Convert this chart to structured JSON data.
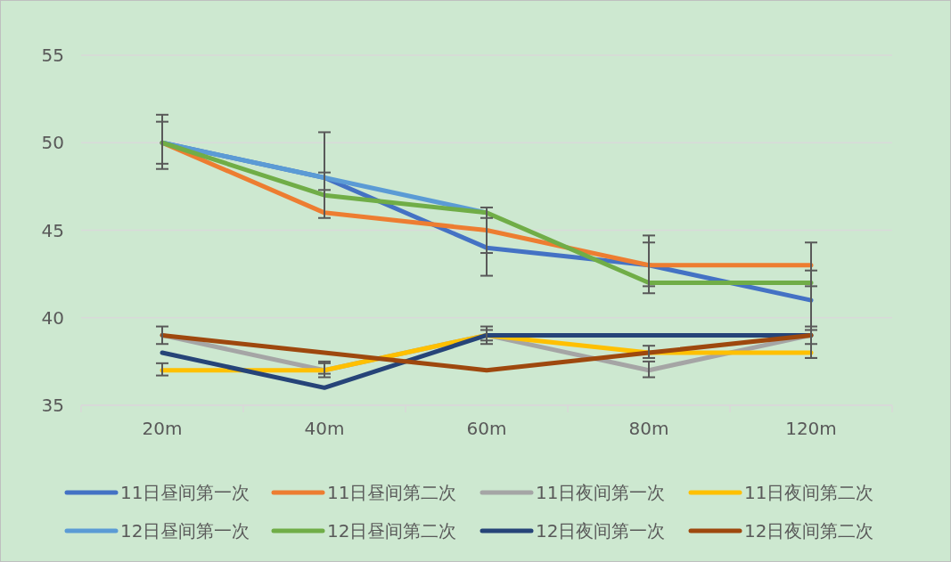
{
  "chart_data": {
    "type": "line",
    "categories": [
      "20m",
      "40m",
      "60m",
      "80m",
      "120m"
    ],
    "ylim": [
      35,
      55
    ],
    "yticks": [
      35,
      40,
      45,
      50,
      55
    ],
    "grid": "y",
    "legend": "bottom",
    "marker": "none",
    "line_style": "solid",
    "series": [
      {
        "name": "11日昼间第一次",
        "color": "#4472c4",
        "values": [
          50,
          48,
          44,
          43,
          41
        ],
        "errors": [
          [
            48.5,
            51.6
          ],
          [
            47.3,
            50.6
          ],
          [
            42.4,
            45.7
          ],
          [
            41.4,
            44.3
          ],
          [
            37.7,
            42.7
          ]
        ]
      },
      {
        "name": "11日昼间第二次",
        "color": "#ed7d31",
        "values": [
          50,
          46,
          45,
          43,
          43
        ],
        "errors": [
          [
            48.8,
            51.2
          ],
          [
            45.7,
            48.3
          ],
          [
            43.7,
            46.3
          ],
          [
            41.8,
            44.7
          ],
          [
            41.8,
            44.3
          ]
        ]
      },
      {
        "name": "11日夜间第一次",
        "color": "#a5a5a5",
        "values": [
          39,
          37,
          39,
          37,
          39
        ],
        "errors": [
          [
            38.5,
            39.5
          ],
          [
            36.6,
            37.5
          ],
          [
            38.5,
            39.5
          ],
          [
            36.6,
            37.5
          ],
          [
            38.5,
            39.5
          ]
        ]
      },
      {
        "name": "11日夜间第二次",
        "color": "#ffc000",
        "values": [
          37,
          37,
          39,
          38,
          38
        ],
        "errors": [
          [
            36.7,
            37.4
          ],
          [
            36.8,
            37.4
          ],
          [
            38.7,
            39.3
          ],
          [
            37.7,
            38.4
          ],
          [
            37.7,
            39.3
          ]
        ]
      },
      {
        "name": "12日昼间第一次",
        "color": "#5b9bd5",
        "values": [
          50,
          48,
          46,
          null,
          null
        ]
      },
      {
        "name": "12日昼间第二次",
        "color": "#70ad47",
        "values": [
          50,
          47,
          46,
          42,
          42
        ]
      },
      {
        "name": "12日夜间第一次",
        "color": "#264478",
        "values": [
          38,
          36,
          39,
          39,
          39
        ]
      },
      {
        "name": "12日夜间第二次",
        "color": "#9e480e",
        "values": [
          39,
          38,
          37,
          38,
          39
        ]
      }
    ]
  }
}
